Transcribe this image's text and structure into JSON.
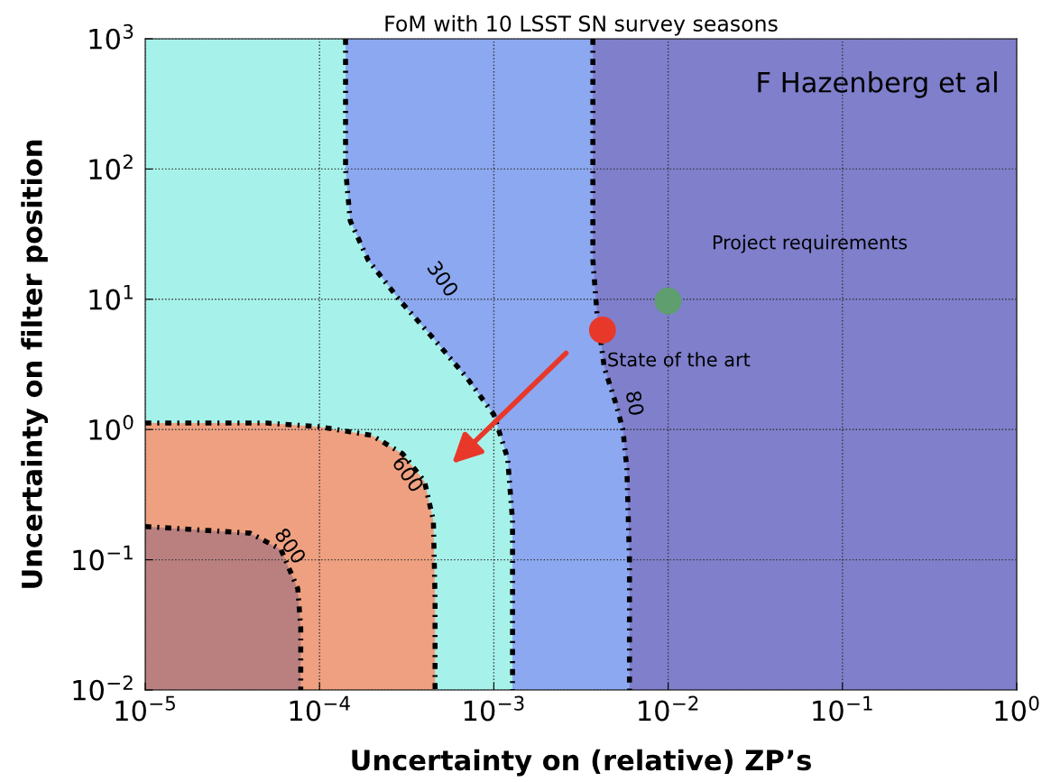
{
  "chart_data": {
    "type": "line",
    "title": "FoM with 10 LSST SN survey seasons",
    "xlabel": "Uncertainty on (relative) ZP’s",
    "ylabel": "Uncertainty on filter position",
    "log": "xy",
    "grid": true,
    "line_style": "dotted",
    "xlim": [
      1e-05,
      1
    ],
    "ylim": [
      0.01,
      1000
    ],
    "xticks": [
      {
        "value": 1e-05,
        "label": "10$^{−5}$"
      },
      {
        "value": 0.0001,
        "label": "10$^{−4}$"
      },
      {
        "value": 0.001,
        "label": "10$^{−3}$"
      },
      {
        "value": 0.01,
        "label": "10$^{−2}$"
      },
      {
        "value": 0.1,
        "label": "10$^{−1}$"
      },
      {
        "value": 1,
        "label": "10$^{0}$"
      }
    ],
    "yticks": [
      {
        "value": 0.01,
        "label": "10$^{−2}$"
      },
      {
        "value": 0.1,
        "label": "10$^{−1}$"
      },
      {
        "value": 1,
        "label": "10$^{0}$"
      },
      {
        "value": 10,
        "label": "10$^{1}$"
      },
      {
        "value": 100,
        "label": "10$^{2}$"
      },
      {
        "value": 1000,
        "label": "10$^{3}$"
      }
    ],
    "series": [
      {
        "color": "#000000",
        "x": [
          0.0037,
          0.0037,
          0.0037,
          0.0039,
          0.0043,
          0.005,
          0.0055,
          0.0058,
          0.006,
          0.006
        ],
        "values": [
          1000,
          100,
          20,
          8,
          3,
          1.6,
          1,
          0.5,
          0.1,
          0.01
        ]
      },
      {
        "color": "#000000",
        "x": [
          0.000141,
          0.000141,
          0.00015,
          0.00019,
          0.000285,
          0.00045,
          0.0007,
          0.001,
          0.0012,
          0.00128,
          0.00128
        ],
        "values": [
          1000,
          100,
          40,
          20,
          10,
          5,
          2.5,
          1.3,
          0.6,
          0.2,
          0.01
        ]
      },
      {
        "color": "#000000",
        "x": [
          1e-05,
          5e-05,
          0.0001,
          0.0002,
          0.0003,
          0.0004,
          0.00045,
          0.00046,
          0.00046
        ],
        "values": [
          1.12,
          1.12,
          1.05,
          0.9,
          0.65,
          0.4,
          0.2,
          0.05,
          0.01
        ]
      },
      {
        "color": "#000000",
        "x": [
          1e-05,
          4e-05,
          6e-05,
          7.5e-05,
          7.8e-05,
          7.8e-05
        ],
        "values": [
          0.18,
          0.16,
          0.12,
          0.06,
          0.03,
          0.01
        ]
      },
      {
        "type": "scatter",
        "x": [
          0.0042,
          0.01
        ],
        "values": [
          5.8,
          9.7
        ],
        "colors": [
          "#e8382a",
          "#5f9e6e"
        ]
      }
    ],
    "annotations": [
      "80",
      "300",
      "600",
      "800",
      "Project requirements",
      "State of the art",
      "F Hazenberg et al"
    ]
  }
}
